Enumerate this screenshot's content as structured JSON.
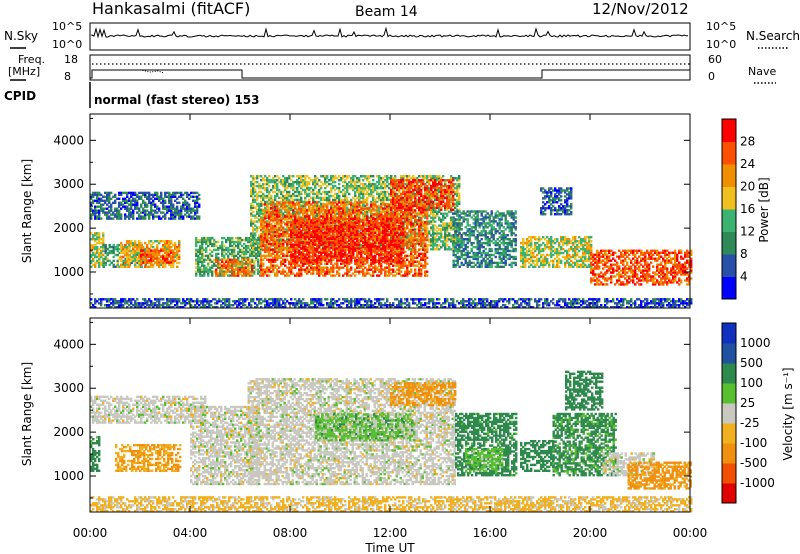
{
  "header": {
    "site": "Hankasalmi (fitACF)",
    "beam": "Beam 14",
    "date": "12/Nov/2012"
  },
  "top_panels": {
    "nsky_label": "N.Sky",
    "nsearch_label": "N.Search",
    "noise_ticks": [
      "10^5",
      "10^0"
    ],
    "freq_label_1": "Freq.",
    "freq_label_2": "[MHz]",
    "freq_ticks": [
      "18",
      "8"
    ],
    "nave_label": "Nave",
    "nave_ticks": [
      "60",
      "0"
    ],
    "cpid_label": "CPID",
    "cpid_text": "normal (fast stereo) 153"
  },
  "colors": {
    "velocity_scale": [
      "#e00000",
      "#f05000",
      "#f09010",
      "#f0b020",
      "#c8c8c0",
      "#58c030",
      "#2e8a4c",
      "#2050a0",
      "#1030c0"
    ],
    "power_scale": [
      "#0000ff",
      "#2850a8",
      "#2e8b57",
      "#3cb371",
      "#f0c020",
      "#f09000",
      "#ff5000",
      "#ff0000"
    ]
  },
  "chart_data": [
    {
      "type": "heatmap",
      "title": "",
      "xlabel": "Time UT",
      "ylabel": "Slant Range [km]",
      "x_ticks": [
        "00:00",
        "04:00",
        "08:00",
        "12:00",
        "16:00",
        "20:00",
        "00:00"
      ],
      "y_ticks": [
        1000,
        2000,
        3000,
        4000
      ],
      "xlim": [
        0,
        24
      ],
      "ylim": [
        180,
        4600
      ],
      "colorbar": {
        "label": "Power [dB]",
        "ticks": [
          4,
          8,
          12,
          16,
          20,
          24,
          28
        ],
        "range": [
          0,
          32
        ]
      },
      "regions": [
        {
          "t0": 0.0,
          "t1": 4.4,
          "r0": 2200,
          "r1": 2800,
          "v": 7
        },
        {
          "t0": 0.0,
          "t1": 0.5,
          "r0": 1100,
          "r1": 1900,
          "v": 17
        },
        {
          "t0": 0.5,
          "t1": 2.2,
          "r0": 1100,
          "r1": 1600,
          "v": 12
        },
        {
          "t0": 1.2,
          "t1": 3.6,
          "r0": 1100,
          "r1": 1700,
          "v": 20
        },
        {
          "t0": 2.0,
          "t1": 3.3,
          "r0": 1200,
          "r1": 1500,
          "v": 25
        },
        {
          "t0": 4.2,
          "t1": 6.8,
          "r0": 900,
          "r1": 1800,
          "v": 13
        },
        {
          "t0": 5.0,
          "t1": 6.5,
          "r0": 900,
          "r1": 1300,
          "v": 24
        },
        {
          "t0": 6.4,
          "t1": 14.8,
          "r0": 1500,
          "r1": 3200,
          "v": 15
        },
        {
          "t0": 6.8,
          "t1": 13.5,
          "r0": 900,
          "r1": 2600,
          "v": 25
        },
        {
          "t0": 8.0,
          "t1": 12.5,
          "r0": 1200,
          "r1": 2200,
          "v": 29
        },
        {
          "t0": 12.0,
          "t1": 14.5,
          "r0": 2400,
          "r1": 3100,
          "v": 27
        },
        {
          "t0": 14.5,
          "t1": 17.0,
          "r0": 1100,
          "r1": 2400,
          "v": 10
        },
        {
          "t0": 17.2,
          "t1": 20.0,
          "r0": 1100,
          "r1": 1800,
          "v": 17
        },
        {
          "t0": 18.0,
          "t1": 19.2,
          "r0": 2300,
          "r1": 2900,
          "v": 7
        },
        {
          "t0": 20.0,
          "t1": 24.0,
          "r0": 700,
          "r1": 1500,
          "v": 26
        },
        {
          "t0": 0.0,
          "t1": 24.0,
          "r0": 180,
          "r1": 400,
          "v": 6
        }
      ]
    },
    {
      "type": "heatmap",
      "title": "",
      "xlabel": "Time UT",
      "ylabel": "Slant Range [km]",
      "x_ticks": [
        "00:00",
        "04:00",
        "08:00",
        "12:00",
        "16:00",
        "20:00",
        "00:00"
      ],
      "y_ticks": [
        1000,
        2000,
        3000,
        4000
      ],
      "xlim": [
        0,
        24
      ],
      "ylim": [
        180,
        4600
      ],
      "colorbar": {
        "label": "Velocity [m s⁻¹]",
        "ticks": [
          -1000,
          -500,
          -100,
          -25,
          25,
          100,
          500,
          1000
        ],
        "range": [
          -1000,
          1000
        ]
      },
      "regions": [
        {
          "t0": 0.0,
          "t1": 4.6,
          "r0": 2200,
          "r1": 2800,
          "v": 0
        },
        {
          "t0": 0.0,
          "t1": 0.4,
          "r0": 1100,
          "r1": 1900,
          "v": 200
        },
        {
          "t0": 1.0,
          "t1": 3.6,
          "r0": 1100,
          "r1": 1700,
          "v": -100
        },
        {
          "t0": 4.0,
          "t1": 6.8,
          "r0": 800,
          "r1": 2600,
          "v": 0
        },
        {
          "t0": 6.3,
          "t1": 14.6,
          "r0": 800,
          "r1": 3200,
          "v": 0
        },
        {
          "t0": 9.0,
          "t1": 13.0,
          "r0": 1800,
          "r1": 2400,
          "v": 60
        },
        {
          "t0": 12.0,
          "t1": 14.6,
          "r0": 2600,
          "r1": 3100,
          "v": -150
        },
        {
          "t0": 14.6,
          "t1": 17.0,
          "r0": 1000,
          "r1": 2400,
          "v": 200
        },
        {
          "t0": 15.0,
          "t1": 16.5,
          "r0": 1100,
          "r1": 1600,
          "v": 60
        },
        {
          "t0": 17.2,
          "t1": 18.5,
          "r0": 1100,
          "r1": 1800,
          "v": 300
        },
        {
          "t0": 18.5,
          "t1": 21.0,
          "r0": 1000,
          "r1": 2400,
          "v": 150
        },
        {
          "t0": 19.0,
          "t1": 20.5,
          "r0": 2500,
          "r1": 3400,
          "v": 300
        },
        {
          "t0": 20.5,
          "t1": 22.5,
          "r0": 1000,
          "r1": 1500,
          "v": 0
        },
        {
          "t0": 21.5,
          "t1": 24.0,
          "r0": 700,
          "r1": 1300,
          "v": -150
        },
        {
          "t0": 0.0,
          "t1": 24.0,
          "r0": 180,
          "r1": 500,
          "v": -50
        }
      ]
    }
  ]
}
